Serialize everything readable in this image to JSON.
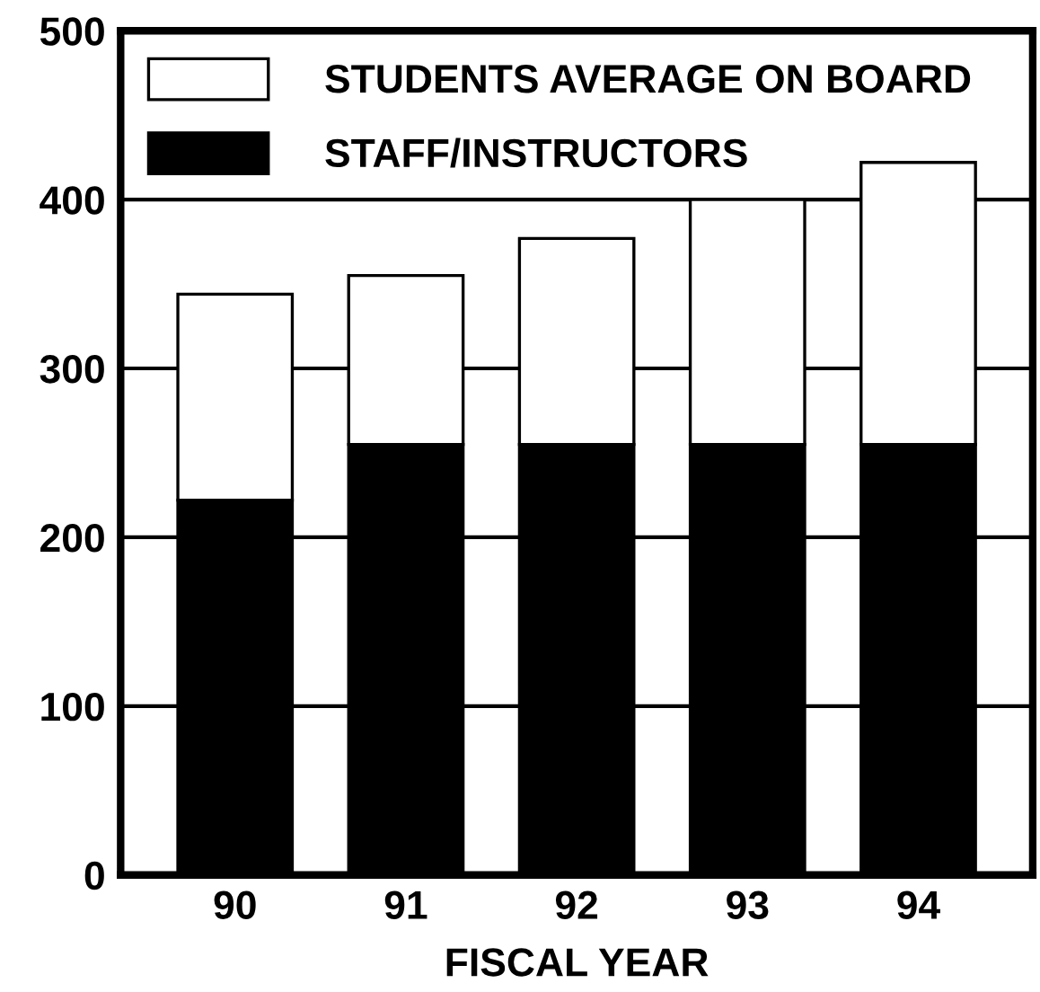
{
  "chart_data": {
    "type": "bar",
    "stacked": true,
    "xlabel": "FISCAL YEAR",
    "categories": [
      "90",
      "91",
      "92",
      "93",
      "94"
    ],
    "series": [
      {
        "name": "STAFF/INSTRUCTORS",
        "color": "#000000",
        "values": [
          222,
          255,
          255,
          255,
          255
        ]
      },
      {
        "name": "STUDENTS AVERAGE ON BOARD",
        "color": "#ffffff",
        "values": [
          122,
          100,
          122,
          145,
          167
        ]
      }
    ],
    "ylim": [
      0,
      500
    ],
    "yticks": [
      0,
      100,
      200,
      300,
      400,
      500
    ],
    "grid": "y",
    "legend": "top left"
  }
}
